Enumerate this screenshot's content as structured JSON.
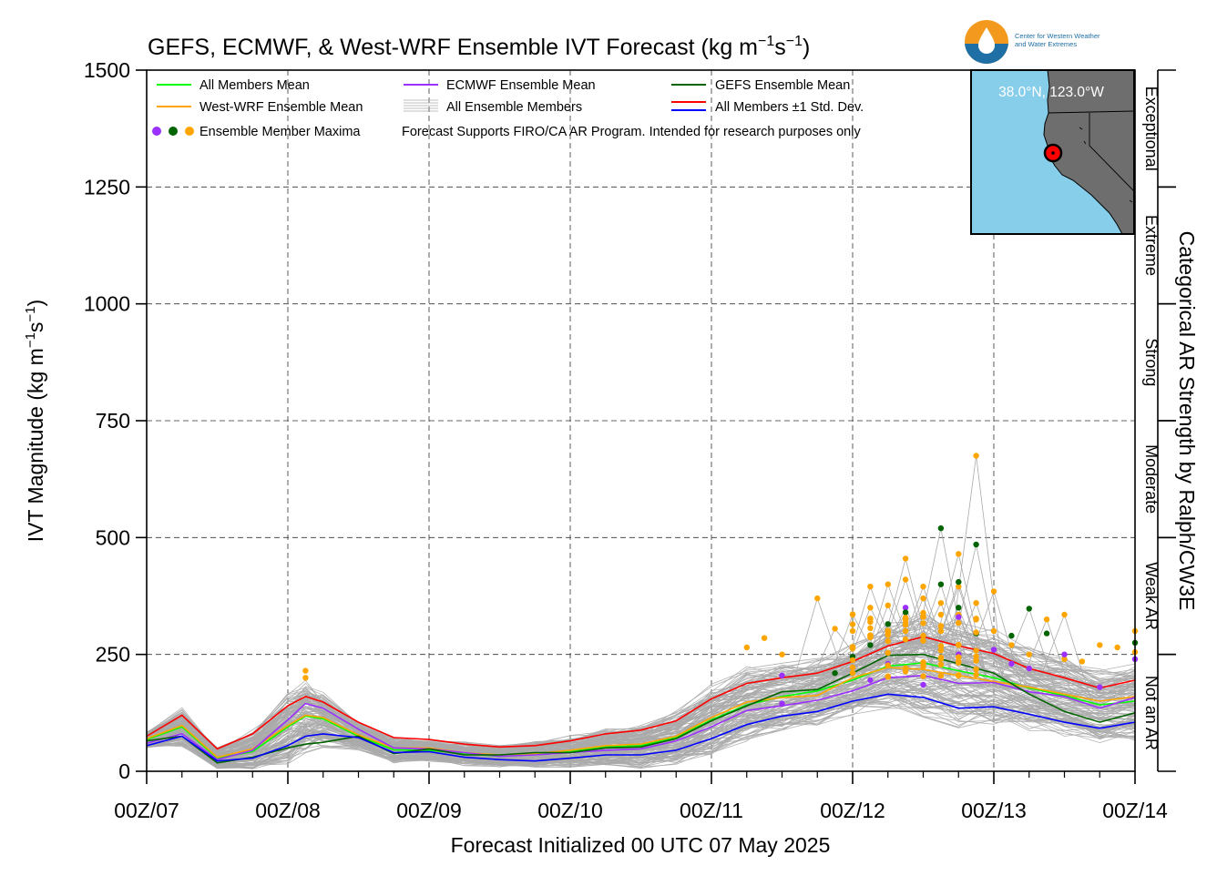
{
  "chart_data": {
    "type": "line",
    "title_main": "GEFS, ECMWF, & West-WRF Ensemble IVT Forecast (kg m",
    "title_sup1": "−1",
    "title_mid": "s",
    "title_sup2": "−1",
    "title_end": ")",
    "ylabel_main": "IVT Magnitude (kg m",
    "ylabel_sup1": "−1",
    "ylabel_mid": "s",
    "ylabel_sup2": "−1",
    "ylabel_end": ")",
    "xlabel": "Forecast Initialized 00 UTC 07 May 2025",
    "right_axis_label": "Categorical AR Strength by Ralph/CW3E",
    "ylim": [
      0,
      1500
    ],
    "xlim_days": [
      7,
      14
    ],
    "yticks": [
      0,
      250,
      500,
      750,
      1000,
      1250,
      1500
    ],
    "xtick_labels": [
      "00Z/07",
      "00Z/08",
      "00Z/09",
      "00Z/10",
      "00Z/11",
      "00Z/12",
      "00Z/13",
      "00Z/14"
    ],
    "categories": [
      {
        "label": "Not an AR",
        "range": [
          0,
          250
        ]
      },
      {
        "label": "Weak AR",
        "range": [
          250,
          500
        ]
      },
      {
        "label": "Moderate",
        "range": [
          500,
          750
        ]
      },
      {
        "label": "Strong",
        "range": [
          750,
          1000
        ]
      },
      {
        "label": "Extreme",
        "range": [
          1000,
          1250
        ]
      },
      {
        "label": "Exceptional",
        "range": [
          1250,
          1500
        ]
      }
    ],
    "legend": {
      "placement": "top-left",
      "items": [
        {
          "label": "All Members Mean",
          "color": "#00ff00"
        },
        {
          "label": "ECMWF Ensemble Mean",
          "color": "#9b30ff"
        },
        {
          "label": "GEFS Ensemble Mean",
          "color": "#006400"
        },
        {
          "label": "West-WRF Ensemble Mean",
          "color": "#ffa500"
        },
        {
          "label": "All Ensemble Members",
          "color": "#aaaaaa"
        },
        {
          "label": "All Members ±1 Std. Dev.",
          "color": "#ff0000",
          "color2": "#0000ff"
        },
        {
          "label": "Ensemble Member Maxima",
          "colors": [
            "#9b30ff",
            "#006400",
            "#ffa500"
          ]
        }
      ],
      "note": "Forecast Supports FIRO/CA AR Program. Intended for research purposes only"
    },
    "x": [
      7.0,
      7.25,
      7.5,
      7.75,
      8.0,
      8.125,
      8.25,
      8.5,
      8.75,
      9.0,
      9.25,
      9.5,
      9.75,
      10.0,
      10.25,
      10.5,
      10.75,
      11.0,
      11.25,
      11.5,
      11.75,
      12.0,
      12.25,
      12.5,
      12.75,
      13.0,
      13.25,
      13.5,
      13.75,
      14.0
    ],
    "series": [
      {
        "name": "All Members +1 Std. Dev.",
        "color": "#ff0000",
        "values": [
          75,
          120,
          48,
          80,
          140,
          160,
          148,
          105,
          72,
          68,
          58,
          52,
          55,
          65,
          80,
          88,
          108,
          155,
          188,
          200,
          210,
          235,
          268,
          288,
          268,
          252,
          220,
          200,
          178,
          195
        ]
      },
      {
        "name": "All Members Mean",
        "color": "#00ff00",
        "values": [
          68,
          95,
          28,
          42,
          95,
          118,
          112,
          75,
          46,
          45,
          38,
          32,
          38,
          42,
          52,
          55,
          72,
          110,
          142,
          160,
          172,
          195,
          225,
          232,
          215,
          200,
          178,
          162,
          142,
          150
        ]
      },
      {
        "name": "West-WRF Ensemble Mean",
        "color": "#ffa500",
        "values": [
          70,
          98,
          30,
          48,
          98,
          120,
          115,
          78,
          50,
          50,
          40,
          35,
          38,
          45,
          55,
          58,
          75,
          115,
          148,
          158,
          162,
          200,
          222,
          218,
          205,
          192,
          180,
          165,
          150,
          160
        ]
      },
      {
        "name": "ECMWF Ensemble Mean",
        "color": "#9b30ff",
        "values": [
          60,
          80,
          25,
          45,
          110,
          145,
          135,
          90,
          50,
          48,
          40,
          32,
          35,
          40,
          45,
          48,
          65,
          95,
          130,
          140,
          152,
          172,
          200,
          205,
          188,
          190,
          170,
          160,
          135,
          158
        ]
      },
      {
        "name": "GEFS Ensemble Mean",
        "color": "#006400",
        "values": [
          65,
          75,
          18,
          30,
          50,
          58,
          62,
          75,
          38,
          48,
          35,
          35,
          40,
          40,
          50,
          52,
          70,
          108,
          140,
          170,
          175,
          210,
          248,
          250,
          230,
          210,
          165,
          128,
          105,
          125
        ]
      },
      {
        "name": "All Members -1 Std. Dev.",
        "color": "#0000ff",
        "values": [
          55,
          75,
          22,
          28,
          55,
          75,
          80,
          72,
          40,
          42,
          30,
          25,
          22,
          28,
          35,
          35,
          45,
          70,
          100,
          118,
          128,
          150,
          165,
          158,
          135,
          138,
          122,
          105,
          92,
          105
        ]
      }
    ],
    "maxima": [
      {
        "group": "West-WRF",
        "color": "#ffa500",
        "points": [
          [
            8.125,
            215
          ],
          [
            8.125,
            200
          ],
          [
            11.25,
            265
          ],
          [
            11.375,
            285
          ],
          [
            11.5,
            250
          ],
          [
            11.75,
            370
          ],
          [
            11.875,
            305
          ],
          [
            12.0,
            335
          ],
          [
            12.0,
            300
          ],
          [
            12.125,
            395
          ],
          [
            12.125,
            350
          ],
          [
            12.25,
            400
          ],
          [
            12.25,
            355
          ],
          [
            12.375,
            455
          ],
          [
            12.375,
            410
          ],
          [
            12.375,
            300
          ],
          [
            12.5,
            395
          ],
          [
            12.5,
            370
          ],
          [
            12.5,
            330
          ],
          [
            12.5,
            290
          ],
          [
            12.625,
            360
          ],
          [
            12.625,
            300
          ],
          [
            12.75,
            465
          ],
          [
            12.75,
            395
          ],
          [
            12.75,
            335
          ],
          [
            12.875,
            675
          ],
          [
            12.875,
            360
          ],
          [
            13.0,
            385
          ],
          [
            13.0,
            300
          ],
          [
            13.125,
            270
          ],
          [
            13.25,
            250
          ],
          [
            13.375,
            325
          ],
          [
            13.5,
            335
          ],
          [
            13.5,
            240
          ],
          [
            13.625,
            235
          ],
          [
            13.75,
            270
          ],
          [
            13.875,
            265
          ],
          [
            14.0,
            300
          ],
          [
            14.0,
            255
          ]
        ]
      },
      {
        "group": "GEFS",
        "color": "#006400",
        "points": [
          [
            11.875,
            210
          ],
          [
            12.0,
            245
          ],
          [
            12.125,
            270
          ],
          [
            12.25,
            315
          ],
          [
            12.375,
            340
          ],
          [
            12.625,
            520
          ],
          [
            12.625,
            400
          ],
          [
            12.75,
            405
          ],
          [
            12.75,
            350
          ],
          [
            12.875,
            485
          ],
          [
            12.875,
            295
          ],
          [
            13.125,
            290
          ],
          [
            13.25,
            348
          ],
          [
            13.375,
            295
          ],
          [
            14.0,
            275
          ]
        ]
      },
      {
        "group": "ECMWF",
        "color": "#9b30ff",
        "points": [
          [
            11.5,
            205
          ],
          [
            11.5,
            145
          ],
          [
            12.0,
            222
          ],
          [
            12.125,
            195
          ],
          [
            12.25,
            230
          ],
          [
            12.375,
            350
          ],
          [
            12.5,
            185
          ],
          [
            12.75,
            330
          ],
          [
            12.75,
            250
          ],
          [
            13.0,
            260
          ],
          [
            13.125,
            230
          ],
          [
            13.25,
            220
          ],
          [
            13.5,
            250
          ],
          [
            13.75,
            180
          ],
          [
            14.0,
            240
          ]
        ]
      }
    ],
    "inset_map": {
      "label": "38.0°N, 123.0°W",
      "lat": 38.0,
      "lon": -123.0,
      "ocean_color": "#87ceeb",
      "land_color": "#6e6e6e",
      "marker_color": "#ff0000"
    }
  },
  "logo": {
    "line1": "Center for Western Weather",
    "line2": "and Water Extremes"
  }
}
